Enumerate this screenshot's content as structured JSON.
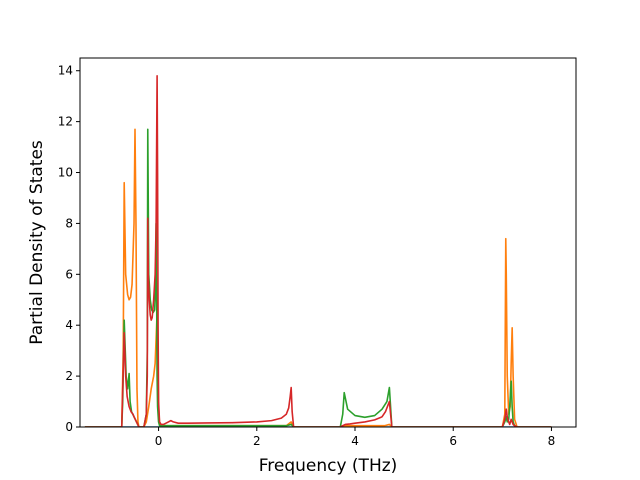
{
  "chart_data": {
    "type": "line",
    "title": "",
    "xlabel": "Frequency (THz)",
    "ylabel": "Partial Density of States",
    "xlim": [
      -1.6,
      8.5
    ],
    "ylim": [
      0,
      14.5
    ],
    "xticks": [
      0,
      2,
      4,
      6,
      8
    ],
    "yticks": [
      0,
      2,
      4,
      6,
      8,
      10,
      12,
      14
    ],
    "xtick_labels": [
      "0",
      "2",
      "4",
      "6",
      "8"
    ],
    "ytick_labels": [
      "0",
      "2",
      "4",
      "6",
      "8",
      "10",
      "12",
      "14"
    ],
    "grid": false,
    "legend": "none",
    "series": [
      {
        "color": "#1f77b4",
        "x": [
          -1.5,
          8.0
        ],
        "y": [
          0,
          0
        ]
      },
      {
        "color": "#ff7f0e",
        "x": [
          -1.5,
          -0.75,
          -0.72,
          -0.7,
          -0.67,
          -0.63,
          -0.6,
          -0.57,
          -0.54,
          -0.5,
          -0.48,
          -0.46,
          -0.44,
          -0.42,
          -0.4,
          -0.3,
          -0.25,
          -0.2,
          -0.15,
          -0.1,
          -0.07,
          -0.05,
          -0.03,
          -0.01,
          0.0,
          0.02,
          0.05,
          0.3,
          1.0,
          2.0,
          2.6,
          2.7,
          2.75,
          3.7,
          3.75,
          4.6,
          4.7,
          4.75,
          7.0,
          7.05,
          7.07,
          7.08,
          7.1,
          7.13,
          7.16,
          7.18,
          7.2,
          7.22,
          7.25,
          7.3,
          8.0
        ],
        "y": [
          0,
          0,
          3.0,
          9.6,
          6.0,
          5.2,
          5.0,
          5.1,
          5.6,
          8.0,
          11.7,
          8.0,
          1.5,
          0.2,
          0,
          0,
          0.2,
          0.8,
          1.5,
          2.0,
          2.5,
          3.5,
          4.5,
          2.0,
          0.8,
          0.1,
          0.05,
          0.05,
          0.05,
          0.05,
          0.05,
          0.2,
          0,
          0,
          0.05,
          0.05,
          0.1,
          0,
          0,
          0.5,
          7.4,
          6.0,
          2.0,
          0.5,
          0.8,
          2.5,
          3.9,
          2.0,
          0.3,
          0,
          0
        ]
      },
      {
        "color": "#2ca02c",
        "x": [
          -1.5,
          -0.75,
          -0.73,
          -0.7,
          -0.66,
          -0.63,
          -0.6,
          -0.58,
          -0.55,
          -0.5,
          -0.45,
          -0.4,
          -0.3,
          -0.25,
          -0.23,
          -0.22,
          -0.2,
          -0.17,
          -0.14,
          -0.11,
          -0.08,
          -0.06,
          -0.05,
          -0.04,
          -0.03,
          -0.02,
          0.0,
          0.02,
          0.05,
          0.3,
          1.0,
          2.0,
          2.6,
          2.7,
          2.75,
          3.7,
          3.75,
          3.78,
          3.85,
          4.0,
          4.2,
          4.4,
          4.55,
          4.65,
          4.7,
          4.75,
          7.0,
          7.05,
          7.08,
          7.1,
          7.13,
          7.15,
          7.18,
          7.2,
          7.22,
          7.25,
          7.3,
          8.0
        ],
        "y": [
          0,
          0,
          1.0,
          4.2,
          2.0,
          1.5,
          2.1,
          1.0,
          0.6,
          0.4,
          0.2,
          0,
          0,
          0.5,
          3.0,
          11.7,
          6.0,
          5.0,
          4.6,
          4.5,
          4.6,
          5.5,
          8.0,
          5.5,
          2.0,
          0.8,
          0.2,
          0.05,
          0.05,
          0.05,
          0.05,
          0.05,
          0.05,
          0.1,
          0,
          0,
          0.5,
          1.35,
          0.7,
          0.45,
          0.38,
          0.45,
          0.7,
          1.0,
          1.55,
          0,
          0,
          0.2,
          0.4,
          0.2,
          0.3,
          0.8,
          1.8,
          0.8,
          0.2,
          0.05,
          0,
          0
        ]
      },
      {
        "color": "#d62728",
        "x": [
          -1.5,
          -0.75,
          -0.73,
          -0.7,
          -0.67,
          -0.64,
          -0.6,
          -0.56,
          -0.52,
          -0.5,
          -0.45,
          -0.4,
          -0.3,
          -0.25,
          -0.23,
          -0.22,
          -0.21,
          -0.19,
          -0.17,
          -0.15,
          -0.13,
          -0.1,
          -0.07,
          -0.05,
          -0.04,
          -0.03,
          -0.02,
          -0.01,
          0.0,
          0.02,
          0.05,
          0.1,
          0.2,
          0.25,
          0.3,
          0.4,
          0.6,
          1.0,
          1.5,
          2.0,
          2.3,
          2.5,
          2.6,
          2.65,
          2.68,
          2.7,
          2.72,
          2.75,
          3.7,
          3.75,
          3.8,
          3.9,
          4.0,
          4.2,
          4.4,
          4.55,
          4.62,
          4.68,
          4.7,
          4.75,
          7.0,
          7.05,
          7.08,
          7.1,
          7.13,
          7.15,
          7.18,
          7.2,
          7.22,
          7.25,
          7.3,
          8.0
        ],
        "y": [
          0,
          0,
          1.5,
          3.7,
          2.0,
          1.2,
          0.8,
          0.6,
          0.5,
          0.4,
          0.2,
          0,
          0,
          0.5,
          2.0,
          8.2,
          6.0,
          5.0,
          4.4,
          4.2,
          4.3,
          5.0,
          6.0,
          8.0,
          11.0,
          13.8,
          10.0,
          4.0,
          1.0,
          0.2,
          0.1,
          0.1,
          0.2,
          0.25,
          0.2,
          0.15,
          0.15,
          0.16,
          0.17,
          0.2,
          0.25,
          0.35,
          0.5,
          0.75,
          1.2,
          1.55,
          0.6,
          0,
          0,
          0.05,
          0.1,
          0.12,
          0.15,
          0.2,
          0.28,
          0.4,
          0.6,
          0.9,
          1.0,
          0,
          0,
          0.3,
          0.7,
          0.4,
          0.2,
          0.1,
          0.3,
          0.2,
          0.1,
          0.05,
          0,
          0
        ]
      }
    ]
  }
}
